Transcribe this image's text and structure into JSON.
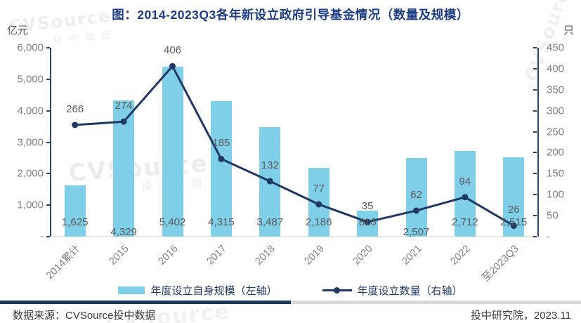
{
  "title": "图：2014-2023Q3各年新设立政府引导基金情况（数量及规模）",
  "axes_units": {
    "left": "亿元",
    "right": "只"
  },
  "chart_data": {
    "type": "bar+line combo",
    "categories": [
      "2014累计",
      "2015",
      "2016",
      "2017",
      "2018",
      "2019",
      "2020",
      "2021",
      "2022",
      "至2023Q3"
    ],
    "series": [
      {
        "name": "年度设立自身规模（左轴）",
        "type": "bar",
        "axis": "left",
        "values": [
          1625,
          4329,
          5402,
          4315,
          3487,
          2186,
          816,
          2507,
          2712,
          2515
        ],
        "labels": [
          "1,625",
          "4,329",
          "5,402",
          "4,315",
          "3,487",
          "2,186",
          "816",
          "2,507",
          "2,712",
          "2,515"
        ]
      },
      {
        "name": "年度设立数量（右轴）",
        "type": "line",
        "axis": "right",
        "values": [
          266,
          274,
          406,
          185,
          132,
          77,
          35,
          62,
          94,
          26
        ],
        "labels": [
          "266",
          "274",
          "406",
          "185",
          "132",
          "77",
          "35",
          "62",
          "94",
          "26"
        ]
      }
    ],
    "left_axis": {
      "min": 0,
      "max": 6000,
      "step": 1000,
      "tick_labels": [
        "-",
        "1,000",
        "2,000",
        "3,000",
        "4,000",
        "5,000",
        "6,000"
      ]
    },
    "right_axis": {
      "min": 0,
      "max": 450,
      "step": 50,
      "tick_labels": [
        "-",
        "50",
        "100",
        "150",
        "200",
        "250",
        "300",
        "350",
        "400",
        "450"
      ]
    },
    "grid": false,
    "legend_position": "bottom",
    "low_label_indices": [
      1,
      7
    ]
  },
  "legend": [
    {
      "label": "年度设立自身规模（左轴）",
      "swatch": "bar"
    },
    {
      "label": "年度设立数量（右轴）",
      "swatch": "line-marker"
    }
  ],
  "footer": {
    "source": "数据来源：CVSource投中数据",
    "right": "投中研究院，2023.11"
  },
  "watermark": {
    "latin": "CVSource",
    "cjk": "投中数据"
  },
  "colors": {
    "bar": "#7FCFE8",
    "line": "#1F3864",
    "title": "#1D3C84",
    "axis_line": "#26437C",
    "tick_text": "#7F7F7F",
    "data_label": "#595959",
    "divider_dark": "#17375E",
    "divider_light": "#D8D8D8"
  }
}
